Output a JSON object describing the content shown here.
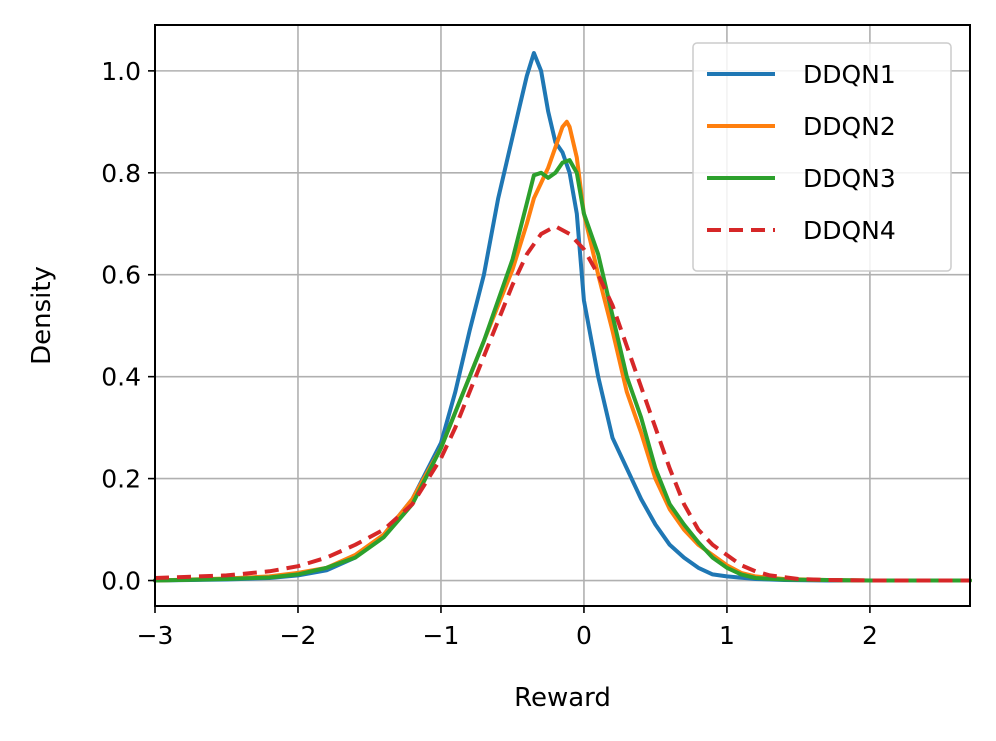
{
  "chart_data": {
    "type": "line",
    "title": "",
    "xlabel": "Reward",
    "ylabel": "Density",
    "xlim": [
      -3,
      2.7
    ],
    "ylim": [
      -0.05,
      1.09
    ],
    "xticks": [
      -3,
      -2,
      -1,
      0,
      1,
      2
    ],
    "xtick_labels": [
      "−3",
      "−2",
      "−1",
      "0",
      "1",
      "2"
    ],
    "yticks": [
      0.0,
      0.2,
      0.4,
      0.6,
      0.8,
      1.0
    ],
    "ytick_labels": [
      "0.0",
      "0.2",
      "0.4",
      "0.6",
      "0.8",
      "1.0"
    ],
    "grid": true,
    "legend_position": "top-right",
    "series": [
      {
        "name": "DDQN1",
        "color": "#1f77b4",
        "dash": "solid",
        "x": [
          -3.0,
          -2.5,
          -2.2,
          -2.0,
          -1.8,
          -1.6,
          -1.4,
          -1.2,
          -1.0,
          -0.9,
          -0.8,
          -0.7,
          -0.6,
          -0.5,
          -0.45,
          -0.4,
          -0.35,
          -0.3,
          -0.25,
          -0.2,
          -0.15,
          -0.1,
          -0.05,
          0.0,
          0.1,
          0.2,
          0.3,
          0.4,
          0.5,
          0.6,
          0.7,
          0.8,
          0.9,
          1.0,
          1.2,
          1.4,
          1.7,
          2.0,
          2.7
        ],
        "y": [
          0.0,
          0.002,
          0.005,
          0.01,
          0.02,
          0.045,
          0.09,
          0.16,
          0.27,
          0.37,
          0.49,
          0.6,
          0.75,
          0.87,
          0.93,
          0.99,
          1.035,
          1.0,
          0.92,
          0.86,
          0.84,
          0.8,
          0.72,
          0.55,
          0.4,
          0.28,
          0.22,
          0.16,
          0.11,
          0.07,
          0.045,
          0.025,
          0.012,
          0.008,
          0.003,
          0.001,
          0.0,
          0.0,
          0.0
        ]
      },
      {
        "name": "DDQN2",
        "color": "#ff7f0e",
        "dash": "solid",
        "x": [
          -3.0,
          -2.5,
          -2.2,
          -2.0,
          -1.8,
          -1.6,
          -1.4,
          -1.2,
          -1.0,
          -0.9,
          -0.8,
          -0.7,
          -0.6,
          -0.5,
          -0.4,
          -0.35,
          -0.3,
          -0.25,
          -0.2,
          -0.15,
          -0.12,
          -0.1,
          -0.05,
          0.0,
          0.05,
          0.1,
          0.2,
          0.3,
          0.4,
          0.5,
          0.6,
          0.7,
          0.8,
          0.9,
          1.0,
          1.1,
          1.2,
          1.4,
          1.7,
          2.0,
          2.7
        ],
        "y": [
          0.0,
          0.004,
          0.008,
          0.015,
          0.025,
          0.05,
          0.09,
          0.16,
          0.26,
          0.33,
          0.4,
          0.47,
          0.54,
          0.61,
          0.7,
          0.75,
          0.78,
          0.81,
          0.85,
          0.89,
          0.9,
          0.89,
          0.83,
          0.72,
          0.66,
          0.6,
          0.49,
          0.37,
          0.29,
          0.2,
          0.14,
          0.1,
          0.07,
          0.05,
          0.03,
          0.015,
          0.008,
          0.003,
          0.001,
          0.0,
          0.0
        ]
      },
      {
        "name": "DDQN3",
        "color": "#2ca02c",
        "dash": "solid",
        "x": [
          -3.0,
          -2.5,
          -2.2,
          -2.0,
          -1.8,
          -1.6,
          -1.4,
          -1.2,
          -1.0,
          -0.9,
          -0.8,
          -0.7,
          -0.6,
          -0.5,
          -0.4,
          -0.35,
          -0.3,
          -0.25,
          -0.2,
          -0.15,
          -0.1,
          -0.05,
          0.0,
          0.05,
          0.1,
          0.2,
          0.3,
          0.4,
          0.5,
          0.6,
          0.7,
          0.8,
          0.9,
          1.0,
          1.1,
          1.2,
          1.4,
          1.7,
          2.0,
          2.7
        ],
        "y": [
          0.0,
          0.003,
          0.006,
          0.012,
          0.025,
          0.045,
          0.085,
          0.15,
          0.26,
          0.33,
          0.4,
          0.47,
          0.55,
          0.63,
          0.74,
          0.795,
          0.8,
          0.79,
          0.8,
          0.82,
          0.825,
          0.8,
          0.72,
          0.68,
          0.64,
          0.52,
          0.4,
          0.32,
          0.22,
          0.15,
          0.11,
          0.075,
          0.045,
          0.025,
          0.012,
          0.005,
          0.002,
          0.001,
          0.0,
          0.0
        ]
      },
      {
        "name": "DDQN4",
        "color": "#d62728",
        "dash": "dashed",
        "x": [
          -3.0,
          -2.5,
          -2.2,
          -2.0,
          -1.8,
          -1.6,
          -1.4,
          -1.2,
          -1.0,
          -0.9,
          -0.8,
          -0.7,
          -0.6,
          -0.5,
          -0.4,
          -0.3,
          -0.2,
          -0.1,
          0.0,
          0.1,
          0.2,
          0.3,
          0.4,
          0.5,
          0.6,
          0.7,
          0.8,
          0.9,
          1.0,
          1.1,
          1.2,
          1.3,
          1.5,
          1.7,
          2.0,
          2.7
        ],
        "y": [
          0.005,
          0.01,
          0.018,
          0.028,
          0.045,
          0.07,
          0.1,
          0.15,
          0.24,
          0.3,
          0.37,
          0.44,
          0.51,
          0.58,
          0.64,
          0.68,
          0.695,
          0.68,
          0.65,
          0.6,
          0.54,
          0.46,
          0.38,
          0.3,
          0.22,
          0.15,
          0.1,
          0.07,
          0.05,
          0.03,
          0.018,
          0.01,
          0.003,
          0.001,
          0.0,
          0.0
        ]
      }
    ]
  }
}
